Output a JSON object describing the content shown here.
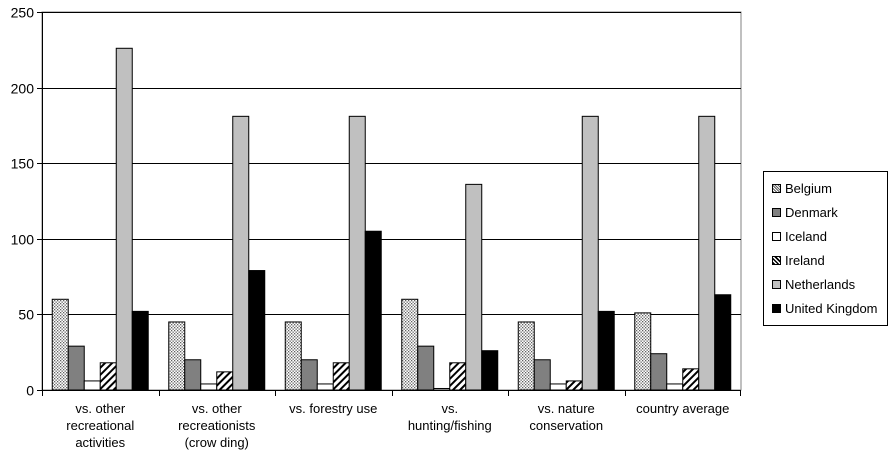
{
  "chart_data": {
    "type": "bar",
    "title": "",
    "xlabel": "",
    "ylabel": "",
    "ylim": [
      0,
      250
    ],
    "yticks": [
      0,
      50,
      100,
      150,
      200,
      250
    ],
    "grid": true,
    "legend_position": "right",
    "categories": [
      [
        "vs. other",
        "recreational",
        "activities"
      ],
      [
        "vs. other",
        "recreationists",
        "(crow ding)"
      ],
      [
        "vs. forestry use"
      ],
      [
        "vs.",
        "hunting/fishing"
      ],
      [
        "vs. nature",
        "conservation"
      ],
      [
        "country average"
      ]
    ],
    "series": [
      {
        "name": "Belgium",
        "values": [
          60,
          45,
          45,
          60,
          45,
          51
        ],
        "color": "#d8d8d8",
        "pattern": "dotted"
      },
      {
        "name": "Denmark",
        "values": [
          29,
          20,
          20,
          29,
          20,
          24
        ],
        "color": "#808080",
        "pattern": "solid"
      },
      {
        "name": "Iceland",
        "values": [
          6,
          4,
          4,
          1,
          4,
          4
        ],
        "color": "#ffffff",
        "pattern": "solid"
      },
      {
        "name": "Ireland",
        "values": [
          18,
          12,
          18,
          18,
          6,
          14
        ],
        "color": "#ffffff",
        "pattern": "hatch"
      },
      {
        "name": "Netherlands",
        "values": [
          226,
          181,
          181,
          136,
          181,
          181
        ],
        "color": "#c0c0c0",
        "pattern": "solid"
      },
      {
        "name": "United Kingdom",
        "values": [
          52,
          79,
          105,
          26,
          52,
          63
        ],
        "color": "#000000",
        "pattern": "solid"
      }
    ]
  }
}
